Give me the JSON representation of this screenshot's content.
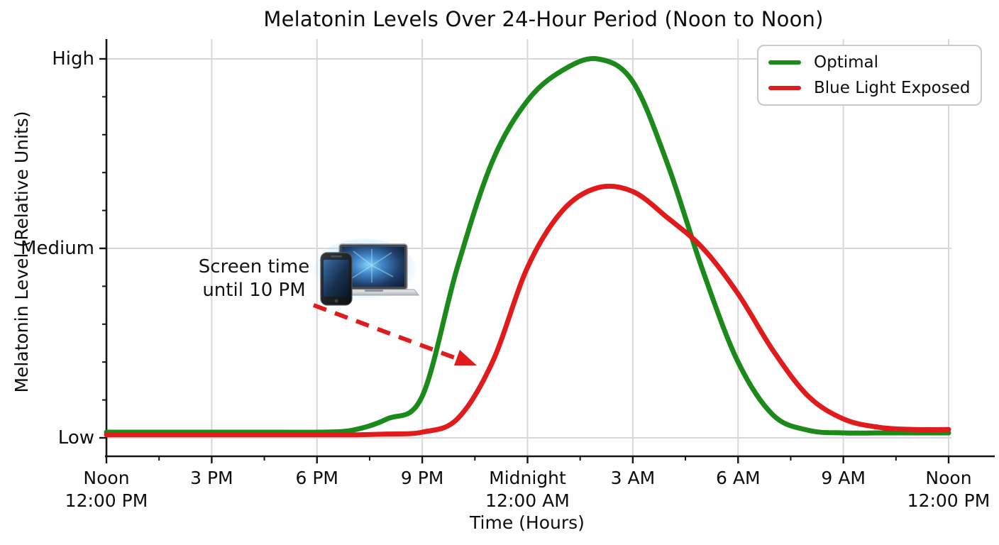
{
  "title": "Melatonin Levels Over 24-Hour Period (Noon to Noon)",
  "axes": {
    "x_label": "Time (Hours)",
    "y_label": "Melatonin Level (Relative Units)",
    "x_ticks": [
      {
        "h": 0,
        "line1": "Noon",
        "line2": "12:00 PM"
      },
      {
        "h": 3,
        "line1": "3 PM",
        "line2": ""
      },
      {
        "h": 6,
        "line1": "6 PM",
        "line2": ""
      },
      {
        "h": 9,
        "line1": "9 PM",
        "line2": ""
      },
      {
        "h": 12,
        "line1": "Midnight",
        "line2": "12:00 AM"
      },
      {
        "h": 15,
        "line1": "3 AM",
        "line2": ""
      },
      {
        "h": 18,
        "line1": "6 AM",
        "line2": ""
      },
      {
        "h": 21,
        "line1": "9 AM",
        "line2": ""
      },
      {
        "h": 24,
        "line1": "Noon",
        "line2": "12:00 PM"
      }
    ],
    "y_ticks": [
      {
        "v": 1.0,
        "label": "High"
      },
      {
        "v": 0.5,
        "label": "Medium"
      },
      {
        "v": 0.0,
        "label": "Low"
      }
    ]
  },
  "legend": [
    {
      "label": "Optimal",
      "color": "#1b8a1b"
    },
    {
      "label": "Blue Light Exposed",
      "color": "#e11b1b"
    }
  ],
  "annotation": {
    "line1": "Screen time",
    "line2": "until 10 PM",
    "icon": "blue-light-devices-icon",
    "arrow_color": "#e11b1b"
  },
  "colors": {
    "grid": "#d8d8d8",
    "axis": "#141414",
    "background": "#ffffff",
    "optimal": "#1b8a1b",
    "blue_light": "#e11b1b",
    "glow": "#9fd8ff"
  },
  "chart_data": {
    "type": "line",
    "title": "Melatonin Levels Over 24-Hour Period (Noon to Noon)",
    "xlabel": "Time (Hours)",
    "ylabel": "Melatonin Level (Relative Units)",
    "x_unit": "hours_after_noon",
    "x_range": [
      0,
      24
    ],
    "y_range": [
      0,
      1
    ],
    "y_tick_values": {
      "Low": 0,
      "Medium": 0.5,
      "High": 1
    },
    "x_major_ticks_h": [
      0,
      3,
      6,
      9,
      12,
      15,
      18,
      21,
      24
    ],
    "x_minor_ticks_h": [
      1.5,
      4.5,
      7.5,
      10.5,
      13.5,
      16.5,
      19.5,
      22.5
    ],
    "grid": true,
    "legend_position": "upper right",
    "x": [
      0,
      1,
      2,
      3,
      4,
      5,
      6,
      7,
      8,
      9,
      10,
      11,
      12,
      13,
      14,
      15,
      16,
      17,
      18,
      19,
      20,
      21,
      22,
      23,
      24
    ],
    "series": [
      {
        "name": "Optimal",
        "color": "#1b8a1b",
        "values": [
          0.015,
          0.015,
          0.015,
          0.015,
          0.015,
          0.015,
          0.015,
          0.02,
          0.05,
          0.11,
          0.45,
          0.73,
          0.89,
          0.97,
          1.0,
          0.94,
          0.72,
          0.44,
          0.2,
          0.06,
          0.02,
          0.013,
          0.013,
          0.013,
          0.013
        ]
      },
      {
        "name": "Blue Light Exposed",
        "color": "#e11b1b",
        "values": [
          0.008,
          0.008,
          0.008,
          0.008,
          0.008,
          0.008,
          0.008,
          0.008,
          0.01,
          0.015,
          0.05,
          0.2,
          0.45,
          0.6,
          0.66,
          0.65,
          0.58,
          0.5,
          0.38,
          0.23,
          0.11,
          0.05,
          0.028,
          0.022,
          0.022
        ]
      }
    ],
    "annotations": [
      {
        "text": "Screen time until 10 PM",
        "points_to_h": 10.4,
        "points_to_v": 0.2
      }
    ]
  }
}
